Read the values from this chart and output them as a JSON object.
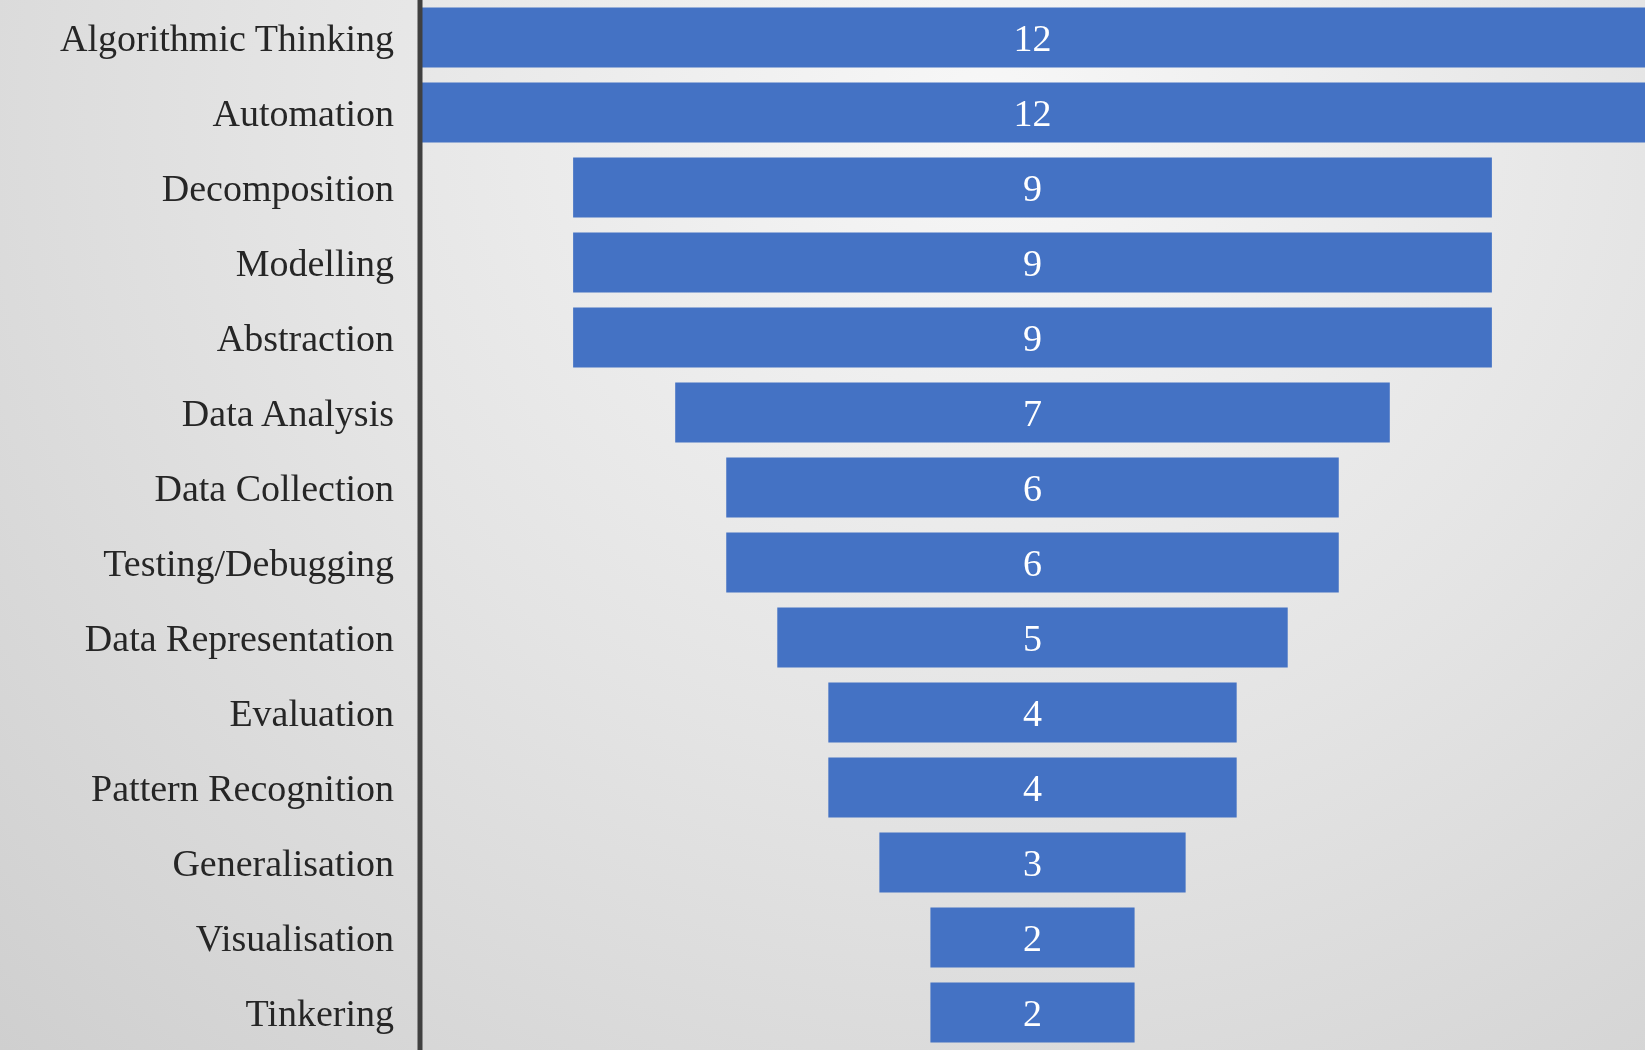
{
  "chart_data": {
    "type": "other",
    "categories": [
      "Algorithmic Thinking",
      "Automation",
      "Decomposition",
      "Modelling",
      "Abstraction",
      "Data Analysis",
      "Data Collection",
      "Testing/Debugging",
      "Data Representation",
      "Evaluation",
      "Pattern Recognition",
      "Generalisation",
      "Visualisation",
      "Tinkering"
    ],
    "values": [
      12,
      12,
      9,
      9,
      9,
      7,
      6,
      6,
      5,
      4,
      4,
      3,
      2,
      2
    ],
    "color": "#4472c4",
    "data_labels": true
  }
}
